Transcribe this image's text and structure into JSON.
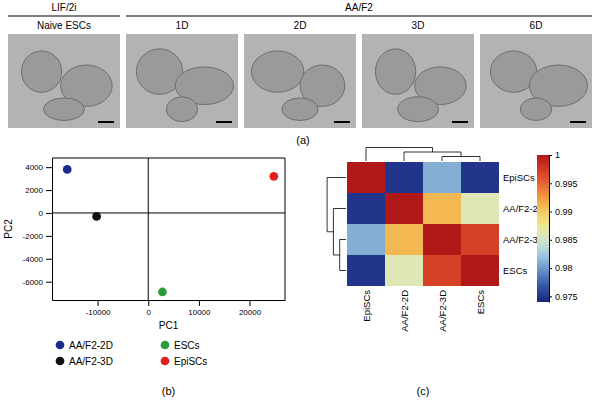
{
  "panel_a": {
    "caption": "(a)",
    "groups": [
      {
        "label": "LIF/2i",
        "images": [
          "Naive ESCs"
        ]
      },
      {
        "label": "AA/F2",
        "images": [
          "1D",
          "2D",
          "3D",
          "6D"
        ]
      }
    ]
  },
  "chart_data": [
    {
      "type": "scatter",
      "title": "(b)",
      "x_label": "PC1",
      "y_label": "PC2",
      "xlim": [
        -19000,
        27000
      ],
      "ylim": [
        -7600,
        4800
      ],
      "xticks": [
        -10000,
        0,
        10000,
        20000
      ],
      "yticks": [
        -6000,
        -4000,
        -2000,
        0,
        2000,
        4000
      ],
      "legend": "bottom",
      "marker": "circle",
      "series": [
        {
          "name": "AA/F2-2D",
          "color": "#1c2b8f",
          "x": [
            -16000
          ],
          "values": [
            3800
          ]
        },
        {
          "name": "ESCs",
          "color": "#2e9a3e",
          "x": [
            2800
          ],
          "values": [
            -6900
          ]
        },
        {
          "name": "AA/F2-3D",
          "color": "#111111",
          "x": [
            -10200
          ],
          "values": [
            -300
          ]
        },
        {
          "name": "EpiSCs",
          "color": "#e0201e",
          "x": [
            24800
          ],
          "values": [
            3200
          ]
        }
      ]
    },
    {
      "type": "heatmap",
      "title": "(c)",
      "rows": [
        "EpiSCs",
        "AA/F2-2D",
        "AA/F2-3D",
        "ESCs"
      ],
      "columns": [
        "EpiSCs",
        "AA/F2-2D",
        "AA/F2-3D",
        "ESCs"
      ],
      "cells": [
        [
          1,
          0.975,
          0.981,
          0.975
        ],
        [
          0.975,
          1,
          0.991,
          0.986
        ],
        [
          0.981,
          0.991,
          1,
          0.997
        ],
        [
          0.975,
          0.986,
          0.997,
          1
        ]
      ],
      "colorbar_range": [
        0.974,
        1
      ],
      "colorbar_ticks": [
        0.975,
        0.98,
        0.985,
        0.99,
        0.995,
        1
      ],
      "dendrogram": [
        [
          2,
          3
        ],
        [
          1,
          4
        ],
        [
          0,
          5
        ]
      ]
    }
  ]
}
